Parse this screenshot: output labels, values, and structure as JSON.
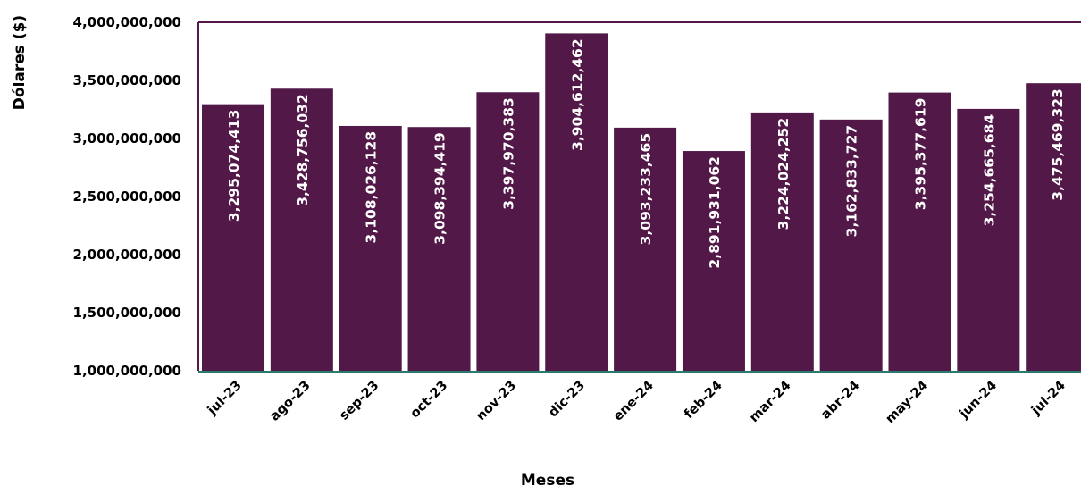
{
  "chart_data": {
    "type": "bar",
    "title": "",
    "xlabel": "Meses",
    "ylabel": "Dólares ($)",
    "ylim": [
      1000000000,
      4000000000
    ],
    "yticks": [
      1000000000,
      1500000000,
      2000000000,
      2500000000,
      3000000000,
      3500000000,
      4000000000
    ],
    "ytick_labels": [
      "1,000,000,000",
      "1,500,000,000",
      "2,000,000,000",
      "2,500,000,000",
      "3,000,000,000",
      "3,500,000,000",
      "4,000,000,000"
    ],
    "categories": [
      "jul-23",
      "ago-23",
      "sep-23",
      "oct-23",
      "nov-23",
      "dic-23",
      "ene-24",
      "feb-24",
      "mar-24",
      "abr-24",
      "may-24",
      "jun-24",
      "jul-24"
    ],
    "values": [
      3295074413,
      3428756032,
      3108026128,
      3098394419,
      3397970383,
      3904612462,
      3093233465,
      2891931062,
      3224024252,
      3162833727,
      3395377619,
      3254665684,
      3475469323
    ],
    "value_labels": [
      "3,295,074,413",
      "3,428,756,032",
      "3,108,026,128",
      "3,098,394,419",
      "3,397,970,383",
      "3,904,612,462",
      "3,093,233,465",
      "2,891,931,062",
      "3,224,024,252",
      "3,162,833,727",
      "3,395,377,619",
      "3,254,665,684",
      "3,475,469,323"
    ],
    "grid": false,
    "legend": "none",
    "colors": {
      "bar": "#521847",
      "frame": "#521847",
      "baseline": "#2a7a6e"
    }
  }
}
